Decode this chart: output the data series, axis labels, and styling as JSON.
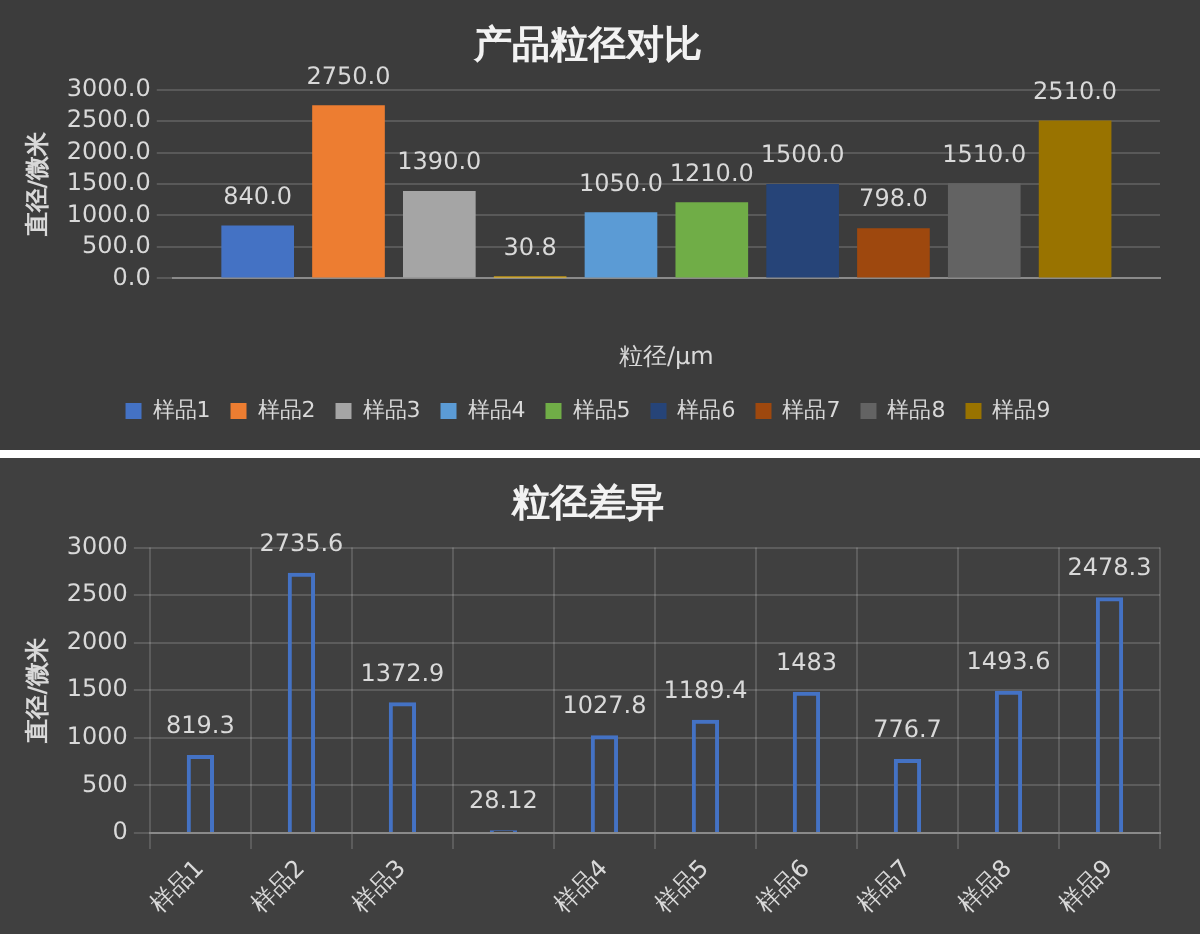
{
  "chart_data": [
    {
      "type": "bar",
      "title": "产品粒径对比",
      "xlabel": "粒径/μm",
      "ylabel": "直径/微米",
      "categories": [
        null
      ],
      "series": [
        {
          "name": "样品1",
          "color": "#4472c4",
          "values": [
            840
          ],
          "value_labels": [
            "840.0"
          ]
        },
        {
          "name": "样品2",
          "color": "#ed7d31",
          "values": [
            2750
          ],
          "value_labels": [
            "2750.0"
          ]
        },
        {
          "name": "样品3",
          "color": "#a5a5a5",
          "values": [
            1390
          ],
          "value_labels": [
            "1390.0"
          ]
        },
        {
          "color": "#ffc000",
          "values": [
            30.8
          ],
          "value_labels": [
            "30.8"
          ]
        },
        {
          "name": "样品4",
          "color": "#5b9bd5",
          "values": [
            1050
          ],
          "value_labels": [
            "1050.0"
          ]
        },
        {
          "name": "样品5",
          "color": "#70ad47",
          "values": [
            1210
          ],
          "value_labels": [
            "1210.0"
          ]
        },
        {
          "name": "样品6",
          "color": "#264478",
          "values": [
            1500
          ],
          "value_labels": [
            "1500.0"
          ]
        },
        {
          "name": "样品7",
          "color": "#9e480e",
          "values": [
            798
          ],
          "value_labels": [
            "798.0"
          ]
        },
        {
          "name": "样品8",
          "color": "#636363",
          "values": [
            1510
          ],
          "value_labels": [
            "1510.0"
          ]
        },
        {
          "name": "样品9",
          "color": "#997300",
          "values": [
            2510
          ],
          "value_labels": [
            "2510.0"
          ]
        }
      ],
      "ylim": [
        0,
        3000
      ],
      "yticks": [
        {
          "value": 0,
          "label": "0.0"
        },
        {
          "value": 500,
          "label": "500.0"
        },
        {
          "value": 1000,
          "label": "1000.0"
        },
        {
          "value": 1500,
          "label": "1500.0"
        },
        {
          "value": 2000,
          "label": "2000.0"
        },
        {
          "value": 2500,
          "label": "2500.0"
        },
        {
          "value": 3000,
          "label": "3000.0"
        }
      ],
      "grid": "y",
      "legend": "bottom"
    },
    {
      "type": "bar",
      "title": "粒径差异",
      "ylabel": "直径/微米",
      "categories": [
        "样品1",
        "样品2",
        "样品3",
        null,
        "样品4",
        "样品5",
        "样品6",
        "样品7",
        "样品8",
        "样品9"
      ],
      "values": [
        819.3,
        2735.6,
        1372.9,
        28.12,
        1027.8,
        1189.4,
        1483,
        776.7,
        1493.6,
        2478.3
      ],
      "color": "#4472c4",
      "ylim": [
        0,
        3000
      ],
      "yticks": [
        0,
        500,
        1000,
        1500,
        2000,
        2500,
        3000
      ],
      "grid": true,
      "data_labels": true
    }
  ]
}
